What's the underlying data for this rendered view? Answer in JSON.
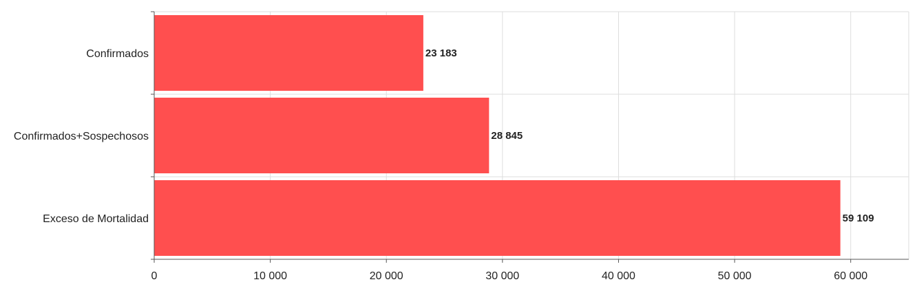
{
  "chart_data": {
    "type": "bar",
    "orientation": "horizontal",
    "categories": [
      "Confirmados",
      "Confirmados+Sospechosos",
      "Exceso de Mortalidad"
    ],
    "values": [
      23183,
      28845,
      59109
    ],
    "value_labels": [
      "23 183",
      "28 845",
      "59 109"
    ],
    "xlim": [
      0,
      65000
    ],
    "xticks": [
      0,
      10000,
      20000,
      30000,
      40000,
      50000,
      60000
    ],
    "xtick_labels": [
      "0",
      "10 000",
      "20 000",
      "30 000",
      "40 000",
      "50 000",
      "60 000"
    ],
    "title": "",
    "xlabel": "",
    "ylabel": "",
    "grid": true,
    "legend": "none",
    "bar_color": "#ff4f4f"
  }
}
